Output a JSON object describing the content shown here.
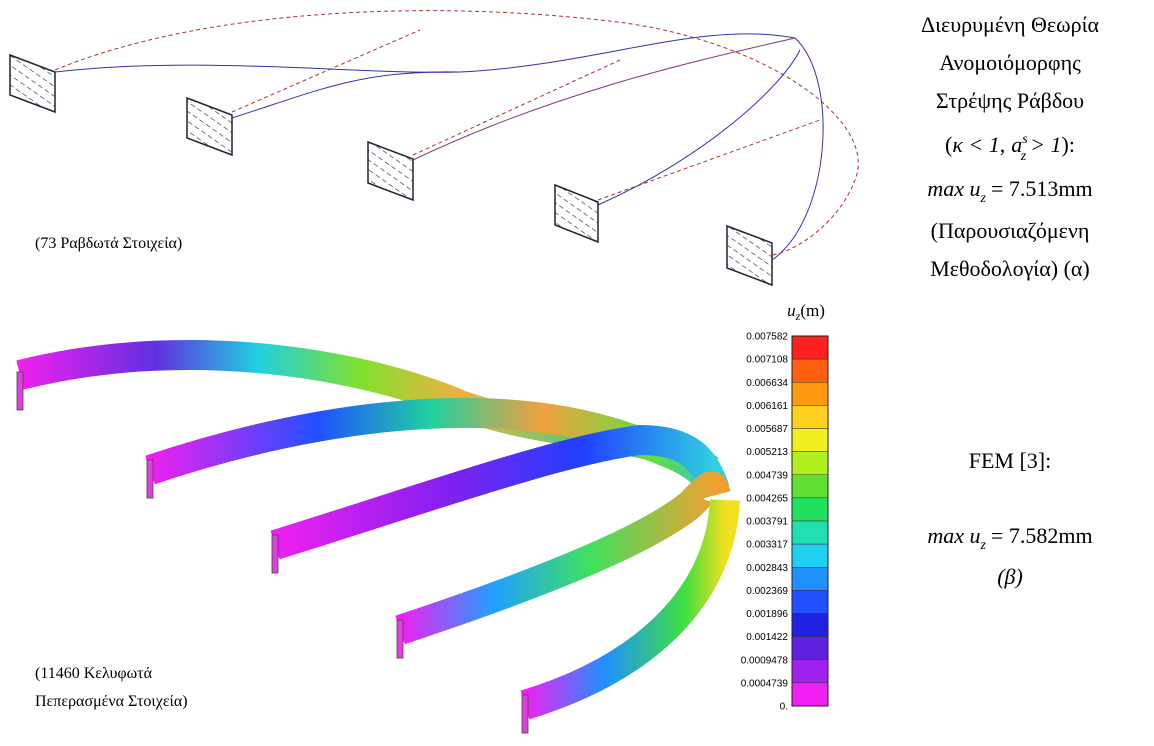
{
  "top_panel": {
    "element_count": "(73 Ραβδωτά Στοιχεία)"
  },
  "right_top": {
    "lines": [
      "Διευρυμένη Θεωρία",
      "Ανομοιόμορφης",
      "Στρέψης Ράβδου"
    ],
    "condition": {
      "open": "(",
      "kappa": "κ < 1",
      "comma": ",",
      "a": "a",
      "sup": "s",
      "sub": "z",
      "gt": "> 1",
      "close": "):"
    },
    "max": {
      "max": "max",
      "u": "u",
      "sub": "z",
      "value": "= 7.513mm"
    },
    "tail": [
      "(Παρουσιαζόμενη",
      "Μεθοδολογία) (α)"
    ]
  },
  "bottom_panel": {
    "element_count": [
      "(11460 Κελυφωτά",
      "Πεπερασμένα Στοιχεία)"
    ]
  },
  "colorbar": {
    "title": {
      "u": "u",
      "sub": "z",
      "unit": "(m)"
    },
    "ticks": [
      "0.007582",
      "0.007108",
      "0.006634",
      "0.006161",
      "0.005687",
      "0.005213",
      "0.004739",
      "0.004265",
      "0.003791",
      "0.003317",
      "0.002843",
      "0.002369",
      "0.001896",
      "0.001422",
      "0.0009478",
      "0.0004739",
      "0."
    ],
    "colors": [
      "#ff2020",
      "#ff6010",
      "#ff9a10",
      "#ffd020",
      "#f0f020",
      "#b0f020",
      "#60e030",
      "#20e060",
      "#20e0b0",
      "#20d0f0",
      "#2090ff",
      "#2050ff",
      "#2020e0",
      "#6020e0",
      "#a020f0",
      "#f020f0"
    ]
  },
  "right_bottom": {
    "label": "FEM [3]:",
    "max": {
      "max": "max",
      "u": "u",
      "sub": "z",
      "value": "= 7.582mm"
    },
    "tag": "(β)"
  }
}
